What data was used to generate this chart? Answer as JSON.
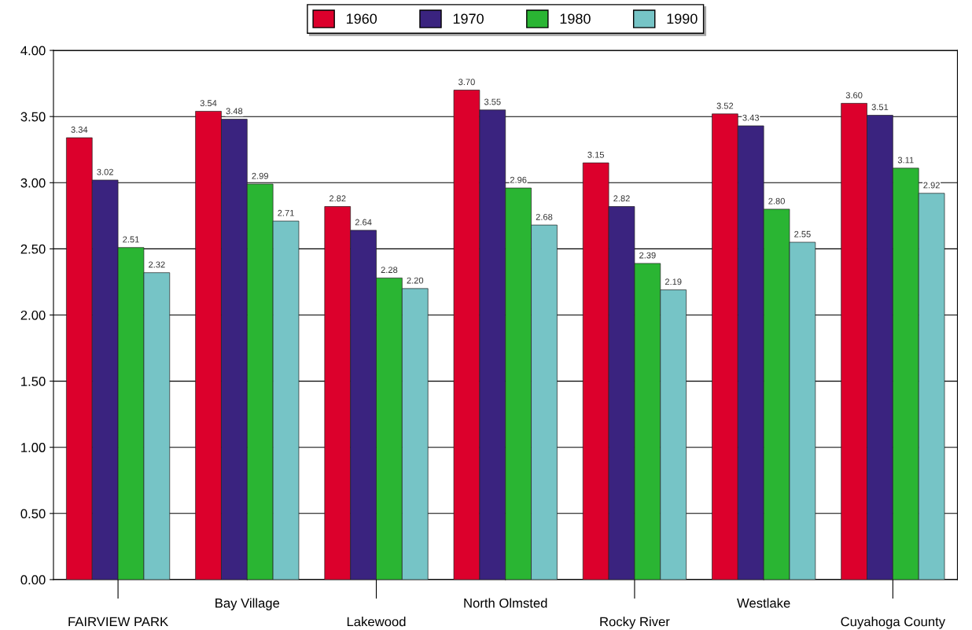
{
  "chart_data": {
    "type": "bar",
    "categories": [
      "FAIRVIEW PARK",
      "Bay Village",
      "Lakewood",
      "North Olmsted",
      "Rocky River",
      "Westlake",
      "Cuyahoga County"
    ],
    "series": [
      {
        "name": "1960",
        "color": "#dc002c",
        "values": [
          3.34,
          3.54,
          2.82,
          3.7,
          3.15,
          3.52,
          3.6
        ],
        "value_labels": [
          "3.34",
          "3.54",
          "2.82",
          "3.70",
          "3.15",
          "3.52",
          "3.60"
        ]
      },
      {
        "name": "1970",
        "color": "#3a237f",
        "values": [
          3.02,
          3.48,
          2.64,
          3.55,
          2.82,
          3.43,
          3.51
        ],
        "value_labels": [
          "3.02",
          "3.48",
          "2.64",
          "3.55",
          "2.82",
          "3.43",
          "3.51"
        ]
      },
      {
        "name": "1980",
        "color": "#2ab533",
        "values": [
          2.51,
          2.99,
          2.28,
          2.96,
          2.39,
          2.8,
          3.11
        ],
        "value_labels": [
          "2.51",
          "2.99",
          "2.28",
          "2.96",
          "2.39",
          "2.80",
          "3.11"
        ]
      },
      {
        "name": "1990",
        "color": "#76c4c6",
        "values": [
          2.32,
          2.71,
          2.2,
          2.68,
          2.19,
          2.55,
          2.92
        ],
        "value_labels": [
          "2.32",
          "2.71",
          "2.20",
          "2.68",
          "2.19",
          "2.55",
          "2.92"
        ]
      }
    ],
    "ylim": [
      0,
      4
    ],
    "yticks": [
      {
        "value": 0,
        "label": "0.00"
      },
      {
        "value": 0.5,
        "label": "0.50"
      },
      {
        "value": 1,
        "label": "1.00"
      },
      {
        "value": 1.5,
        "label": "1.50"
      },
      {
        "value": 2,
        "label": "2.00"
      },
      {
        "value": 2.5,
        "label": "2.50"
      },
      {
        "value": 3,
        "label": "3.00"
      },
      {
        "value": 3.5,
        "label": "3.50"
      },
      {
        "value": 4,
        "label": "4.00"
      }
    ],
    "grid": "y",
    "legend": "top"
  }
}
